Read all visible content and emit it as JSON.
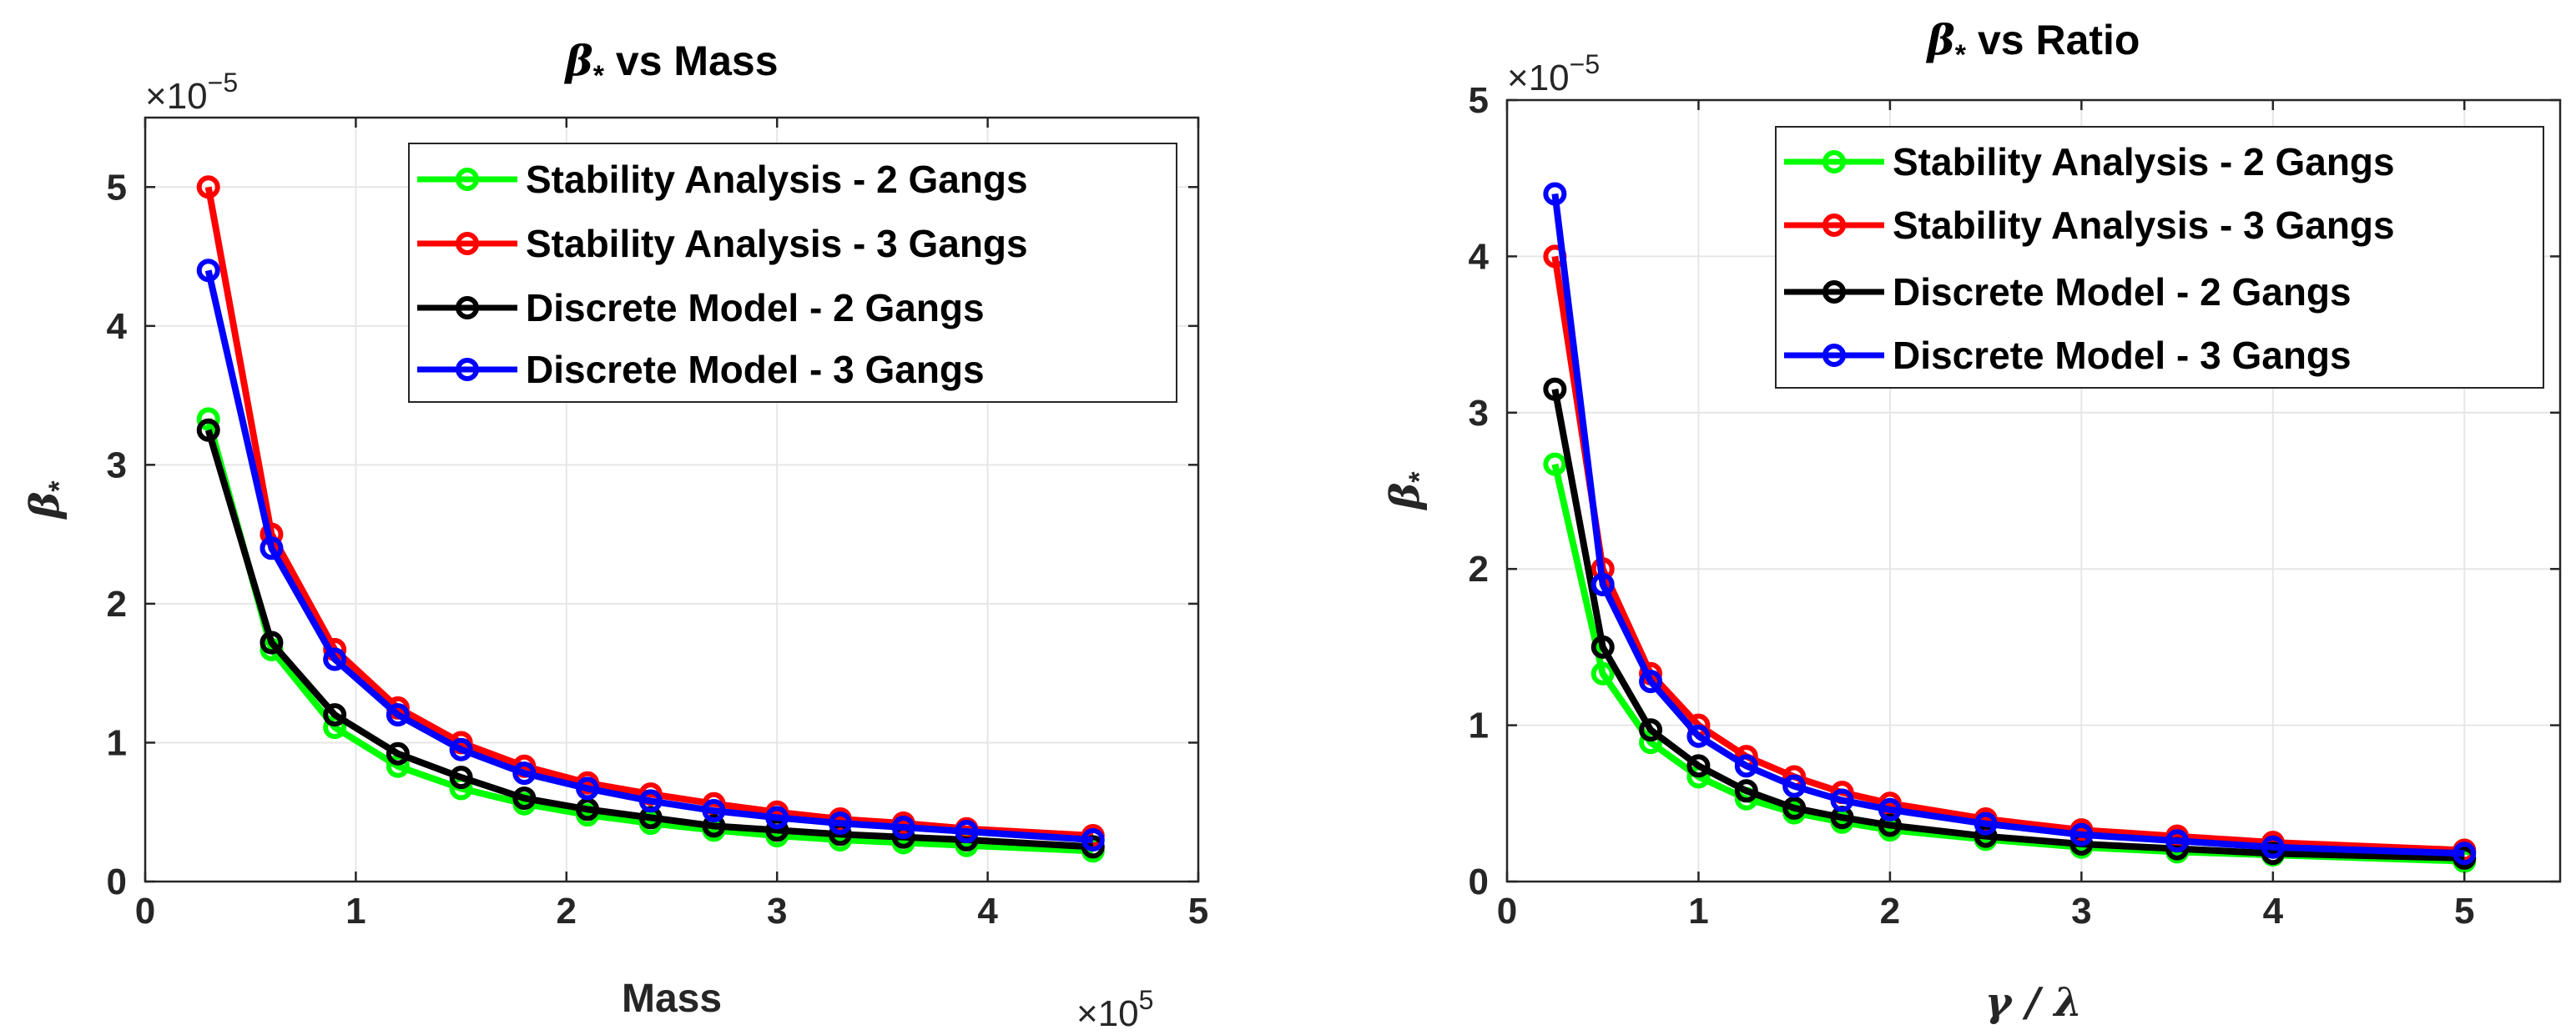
{
  "chart_data": [
    {
      "type": "line",
      "title": "β* vs Mass",
      "title_symbol": "β",
      "title_subscript": "*",
      "title_rest": "vs Mass",
      "xlabel": "Mass",
      "ylabel": "β*",
      "ylabel_symbol": "β",
      "ylabel_subscript": "*",
      "x_multiplier": "×10",
      "x_multiplier_exp": "5",
      "y_multiplier": "×10",
      "y_multiplier_exp": "−5",
      "xlim": [
        0,
        5
      ],
      "ylim": [
        0,
        5.5
      ],
      "xticks": [
        0,
        1,
        2,
        3,
        4,
        5
      ],
      "yticks": [
        0,
        1,
        2,
        3,
        4,
        5
      ],
      "grid": true,
      "legend_position": "top-right",
      "x": [
        0.3,
        0.6,
        0.9,
        1.2,
        1.5,
        1.8,
        2.1,
        2.4,
        2.7,
        3.0,
        3.3,
        3.6,
        3.9,
        4.5
      ],
      "series": [
        {
          "name": "Stability Analysis - 2 Gangs",
          "color": "#00ff00",
          "values": [
            3.33,
            1.67,
            1.11,
            0.83,
            0.67,
            0.56,
            0.48,
            0.42,
            0.37,
            0.33,
            0.3,
            0.28,
            0.26,
            0.22
          ]
        },
        {
          "name": "Stability Analysis - 3 Gangs",
          "color": "#ff0000",
          "values": [
            5.0,
            2.5,
            1.67,
            1.25,
            1.0,
            0.83,
            0.71,
            0.63,
            0.56,
            0.5,
            0.45,
            0.42,
            0.38,
            0.33
          ]
        },
        {
          "name": "Discrete Model - 2 Gangs",
          "color": "#000000",
          "values": [
            3.25,
            1.72,
            1.2,
            0.92,
            0.75,
            0.6,
            0.52,
            0.46,
            0.4,
            0.37,
            0.34,
            0.32,
            0.3,
            0.25
          ]
        },
        {
          "name": "Discrete Model - 3 Gangs",
          "color": "#0000ff",
          "values": [
            4.4,
            2.4,
            1.6,
            1.2,
            0.95,
            0.78,
            0.67,
            0.58,
            0.51,
            0.46,
            0.42,
            0.39,
            0.36,
            0.3
          ]
        }
      ]
    },
    {
      "type": "line",
      "title": "β* vs Ratio",
      "title_symbol": "β",
      "title_subscript": "*",
      "title_rest": "vs Ratio",
      "xlabel": "γ / λ",
      "ylabel": "β*",
      "ylabel_symbol": "β",
      "ylabel_subscript": "*",
      "y_multiplier": "×10",
      "y_multiplier_exp": "−5",
      "xlim": [
        0,
        5.5
      ],
      "ylim": [
        0,
        5
      ],
      "xticks": [
        0,
        1,
        2,
        3,
        4,
        5
      ],
      "yticks": [
        0,
        1,
        2,
        3,
        4,
        5
      ],
      "grid": true,
      "legend_position": "top-right",
      "x": [
        0.25,
        0.5,
        0.75,
        1.0,
        1.25,
        1.5,
        1.75,
        2.0,
        2.5,
        3.0,
        3.5,
        4.0,
        5.0
      ],
      "series": [
        {
          "name": "Stability Analysis - 2 Gangs",
          "color": "#00ff00",
          "values": [
            2.67,
            1.33,
            0.89,
            0.67,
            0.53,
            0.44,
            0.38,
            0.33,
            0.27,
            0.22,
            0.19,
            0.17,
            0.13
          ]
        },
        {
          "name": "Stability Analysis - 3 Gangs",
          "color": "#ff0000",
          "values": [
            4.0,
            2.0,
            1.33,
            1.0,
            0.8,
            0.67,
            0.57,
            0.5,
            0.4,
            0.33,
            0.29,
            0.25,
            0.2
          ]
        },
        {
          "name": "Discrete Model - 2 Gangs",
          "color": "#000000",
          "values": [
            3.15,
            1.5,
            0.97,
            0.74,
            0.58,
            0.47,
            0.41,
            0.36,
            0.29,
            0.24,
            0.21,
            0.18,
            0.15
          ]
        },
        {
          "name": "Discrete Model - 3 Gangs",
          "color": "#0000ff",
          "values": [
            4.4,
            1.9,
            1.28,
            0.93,
            0.74,
            0.61,
            0.52,
            0.46,
            0.37,
            0.3,
            0.26,
            0.22,
            0.18
          ]
        }
      ]
    }
  ]
}
